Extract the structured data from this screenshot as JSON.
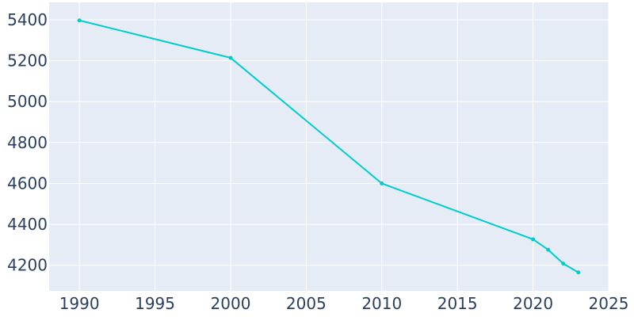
{
  "chart_data": {
    "type": "line",
    "title": "",
    "xlabel": "",
    "ylabel": "",
    "x": [
      1990,
      2000,
      2010,
      2020,
      2021,
      2022,
      2023
    ],
    "series": [
      {
        "values": [
          5397,
          5214,
          4600,
          4327,
          4276,
          4208,
          4165
        ]
      }
    ],
    "xlim": [
      1988,
      2025
    ],
    "ylim": [
      4075,
      5485
    ],
    "xticks": [
      1990,
      1995,
      2000,
      2005,
      2010,
      2015,
      2020,
      2025
    ],
    "yticks": [
      4200,
      4400,
      4600,
      4800,
      5000,
      5200,
      5400
    ],
    "grid": true,
    "legend": "none",
    "colors": {
      "line": "#00cccc",
      "plot_background": "#e5ecf6",
      "grid": "#ffffff",
      "text": "#2a3f5f"
    }
  }
}
